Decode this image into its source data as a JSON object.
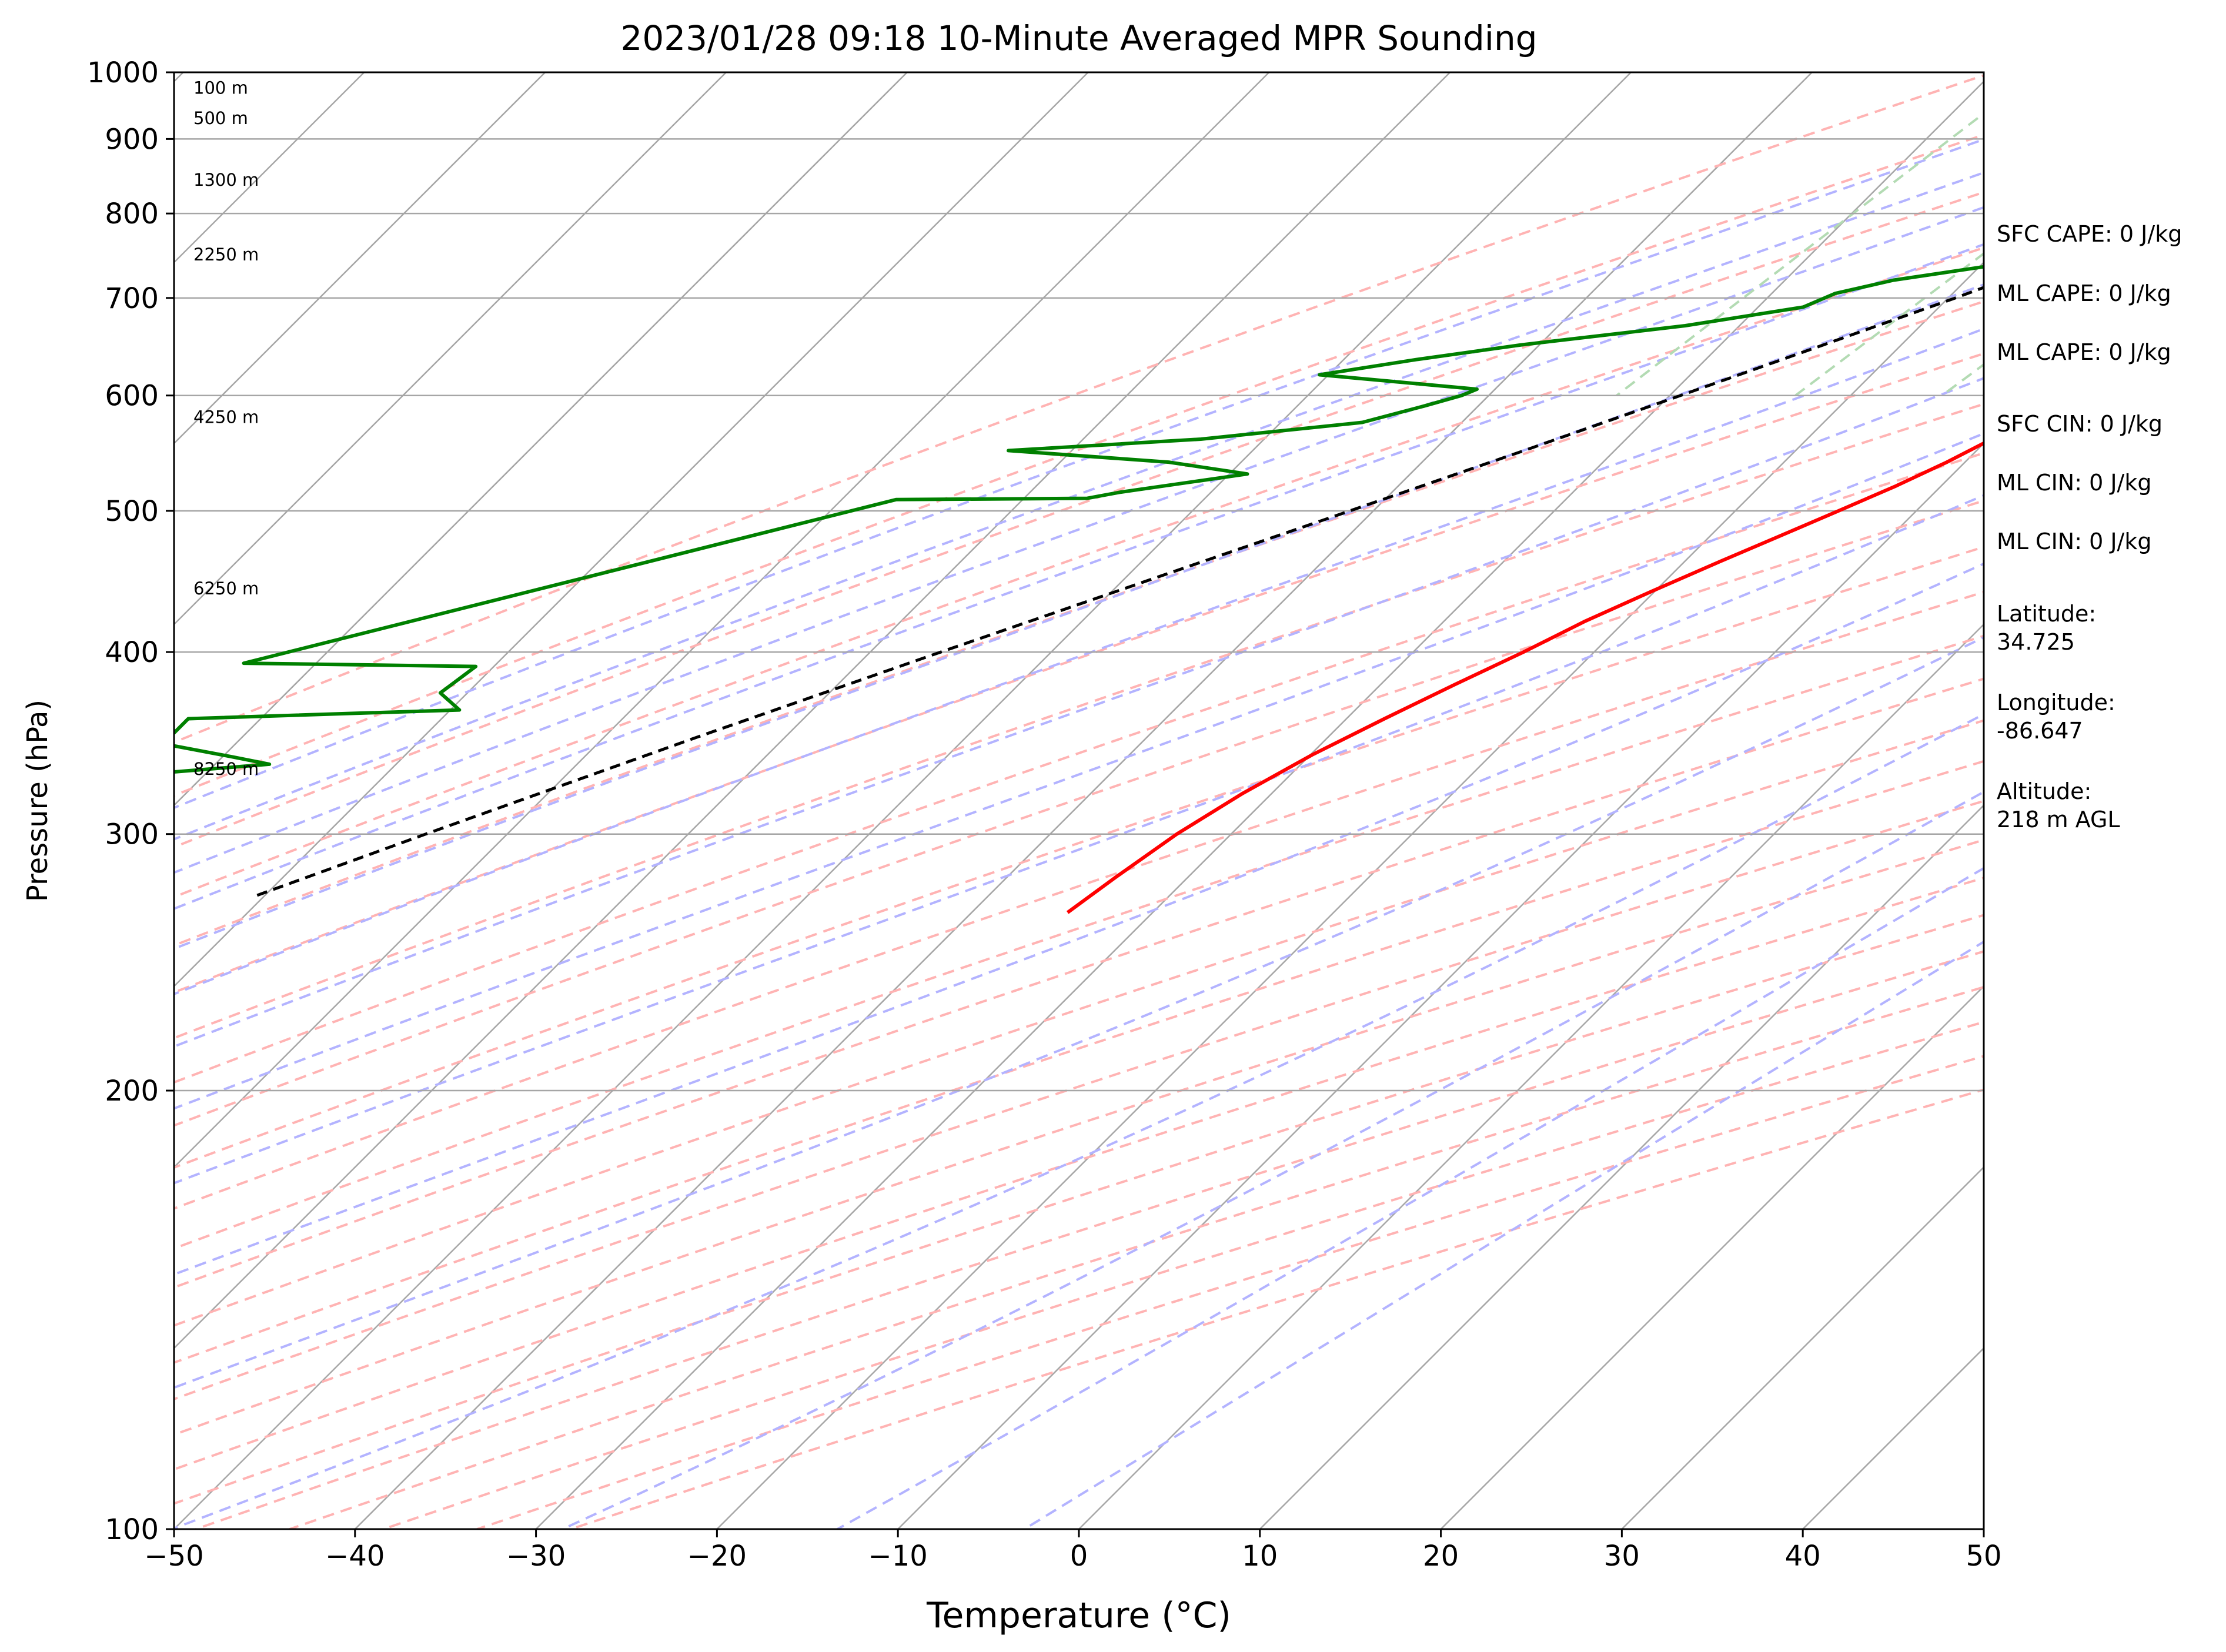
{
  "chart_data": {
    "type": "line",
    "title": "2023/01/28 09:18 10-Minute Averaged MPR Sounding",
    "xlabel": "Temperature (°C)",
    "ylabel": "Pressure (hPa)",
    "xlim": [
      -50,
      50
    ],
    "ylim": [
      1000,
      100
    ],
    "y_scale": "log",
    "x_ticks": [
      -50,
      -40,
      -30,
      -20,
      -10,
      0,
      10,
      20,
      30,
      40,
      50
    ],
    "x_tick_labels": [
      "−50",
      "−40",
      "−30",
      "−20",
      "−10",
      "0",
      "10",
      "20",
      "30",
      "40",
      "50"
    ],
    "y_ticks": [
      1000,
      900,
      800,
      700,
      600,
      500,
      400,
      300,
      200,
      100
    ],
    "y_tick_labels": [
      "1000",
      "900",
      "800",
      "700",
      "600",
      "500",
      "400",
      "300",
      "200",
      "100"
    ],
    "grid": true,
    "skew": "skew-T",
    "series": [
      {
        "color": "#ff0000",
        "points": [
          [
            1000,
            2.5
          ],
          [
            993,
            5.5
          ],
          [
            985,
            7.0
          ],
          [
            975,
            7.5
          ],
          [
            962,
            7.4
          ],
          [
            950,
            6.5
          ],
          [
            930,
            4.5
          ],
          [
            910,
            2.5
          ],
          [
            890,
            1.0
          ],
          [
            870,
            0.0
          ],
          [
            850,
            -0.5
          ],
          [
            830,
            -1.0
          ],
          [
            815,
            -1.5
          ],
          [
            800,
            -1.5
          ],
          [
            780,
            -2.0
          ],
          [
            760,
            -2.5
          ],
          [
            740,
            -3.0
          ],
          [
            720,
            -3.0
          ],
          [
            700,
            -3.2
          ],
          [
            680,
            -3.8
          ],
          [
            660,
            -4.5
          ],
          [
            640,
            -5.3
          ],
          [
            620,
            -6.2
          ],
          [
            600,
            -7.2
          ],
          [
            580,
            -8.6
          ],
          [
            560,
            -9.8
          ],
          [
            540,
            -11.0
          ],
          [
            520,
            -12.5
          ],
          [
            500,
            -14.3
          ],
          [
            480,
            -16.2
          ],
          [
            460,
            -18.2
          ],
          [
            440,
            -20.2
          ],
          [
            420,
            -22.2
          ],
          [
            400,
            -23.9
          ],
          [
            380,
            -25.9
          ],
          [
            360,
            -27.9
          ],
          [
            340,
            -29.9
          ],
          [
            320,
            -31.6
          ],
          [
            300,
            -33.0
          ],
          [
            280,
            -34.0
          ],
          [
            265,
            -34.7
          ]
        ]
      },
      {
        "color": "#008000",
        "points": [
          [
            1000,
            -2.0
          ],
          [
            990,
            -3.0
          ],
          [
            975,
            -3.5
          ],
          [
            960,
            -3.5
          ],
          [
            950,
            -4.0
          ],
          [
            940,
            -3.5
          ],
          [
            930,
            -4.0
          ],
          [
            920,
            -3.0
          ],
          [
            910,
            -4.0
          ],
          [
            895,
            -6.0
          ],
          [
            880,
            -8.0
          ],
          [
            860,
            -10.0
          ],
          [
            845,
            -10.5
          ],
          [
            830,
            -10.5
          ],
          [
            815,
            -11.0
          ],
          [
            800,
            -10.5
          ],
          [
            780,
            -10.5
          ],
          [
            760,
            -12.5
          ],
          [
            740,
            -18.5
          ],
          [
            720,
            -24.0
          ],
          [
            705,
            -26.5
          ],
          [
            690,
            -27.5
          ],
          [
            670,
            -33.0
          ],
          [
            650,
            -41.0
          ],
          [
            635,
            -46.0
          ],
          [
            620,
            -50.5
          ],
          [
            606,
            -41.0
          ],
          [
            600,
            -41.5
          ],
          [
            590,
            -43.0
          ],
          [
            575,
            -45.5
          ],
          [
            560,
            -53.5
          ],
          [
            550,
            -63.5
          ],
          [
            540,
            -54.0
          ],
          [
            530,
            -49.0
          ],
          [
            515,
            -55.0
          ],
          [
            510,
            -56.5
          ],
          [
            509,
            -67.0
          ],
          [
            393,
            -94.0
          ],
          [
            391,
            -81.0
          ],
          [
            375,
            -81.5
          ],
          [
            365,
            -79.5
          ],
          [
            360,
            -94.0
          ],
          [
            346,
            -94.0
          ],
          [
            339,
            -89.5
          ],
          [
            335,
            -87.0
          ],
          [
            330,
            -93.0
          ],
          [
            262,
            -101.0
          ],
          [
            262,
            -98.0
          ]
        ]
      },
      {
        "color": "#000000",
        "style": "dashed",
        "points": [
          [
            1000,
            2.5
          ],
          [
            970,
            -0.5
          ],
          [
            945,
            -2.5
          ],
          [
            900,
            -5.0
          ],
          [
            850,
            -8.3
          ],
          [
            800,
            -11.8
          ],
          [
            750,
            -15.5
          ],
          [
            700,
            -19.6
          ],
          [
            650,
            -24.3
          ],
          [
            600,
            -29.4
          ],
          [
            550,
            -35.0
          ],
          [
            500,
            -41.3
          ],
          [
            450,
            -48.3
          ],
          [
            400,
            -56.1
          ],
          [
            350,
            -64.8
          ],
          [
            300,
            -74.5
          ],
          [
            272,
            -80.5
          ]
        ]
      }
    ],
    "height_labels": [
      "8250 m",
      "6250 m",
      "4250 m",
      "2250 m",
      "1300 m",
      "500 m",
      "100 m"
    ],
    "info": [
      "SFC CAPE: 0 J/kg",
      "ML CAPE: 0 J/kg",
      "ML CAPE: 0 J/kg",
      "SFC CIN: 0 J/kg",
      "ML CIN: 0 J/kg",
      "ML CIN: 0 J/kg",
      "Latitude:\n34.725",
      "Longitude:\n-86.647",
      "Altitude:\n218 m AGL"
    ],
    "colors": {
      "isotherm": "#a6a6a6",
      "dry_adiabat": "#ffb3b3",
      "moist_adiabat": "#b3b3ff",
      "mixing_ratio": "#b3dbb3"
    }
  }
}
